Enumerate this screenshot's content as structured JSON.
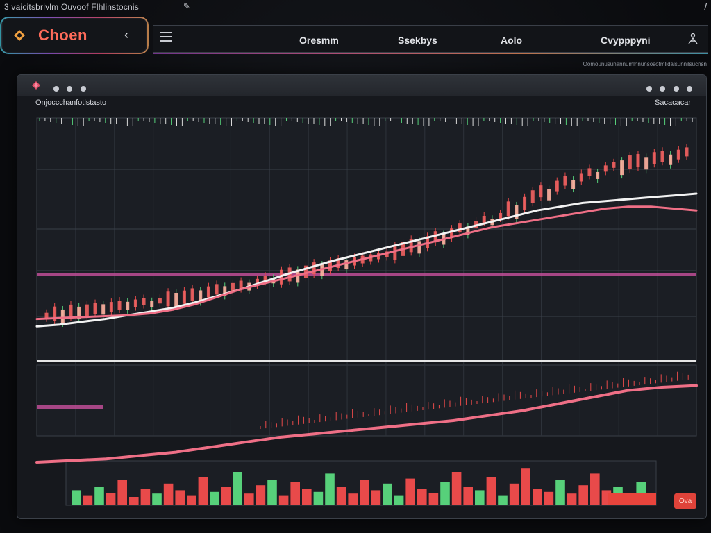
{
  "top_bar": {
    "caption": "3 vaicitsbrivlm Ouvoof Flhlinstocnis",
    "edit_glyph": "✎",
    "corner_glyph": "/"
  },
  "brand": {
    "name": "Choen",
    "back_glyph": "‹",
    "logo_icon": "diamond-logo-icon"
  },
  "nav": {
    "menu_icon": "hamburger-menu-icon",
    "items": [
      "Oresmm",
      "Ssekbys",
      "Aolo",
      "Cvypppyni"
    ],
    "user_icon": "user-icon"
  },
  "subtext": "Oomounusunannumlnnunsosofmlidalsunnilsucnsn",
  "window": {
    "header_left": "Onjoccchanfotlstasto",
    "header_right": "Sacacacar",
    "alert_button_label": "Ova"
  },
  "colors": {
    "up": "#e84a4a",
    "down": "#57d07a",
    "ma_pink": "#ef6f86",
    "ma_white": "#f2f2f2",
    "accent_magenta": "#c9509e",
    "grid": "#3a3f47"
  },
  "chart_data": [
    {
      "type": "line",
      "panel": "main-price",
      "title": "",
      "xlabel": "",
      "ylabel": "",
      "series": [
        {
          "kind": "candles",
          "values": [
            28,
            30,
            27,
            33,
            31,
            34,
            36,
            35,
            38,
            40,
            39,
            42,
            44,
            41,
            45,
            47,
            46,
            49,
            52,
            50,
            55,
            58,
            56,
            60,
            63,
            61,
            66,
            70,
            68,
            72,
            75,
            73,
            78,
            82,
            80,
            85,
            88,
            86,
            90,
            92,
            94,
            96,
            98,
            100,
            104,
            108,
            106,
            112,
            118,
            115,
            122,
            128,
            125,
            132,
            138,
            135,
            142,
            150,
            146,
            156,
            164,
            170,
            166,
            176,
            182,
            178,
            186,
            192,
            188,
            196,
            200,
            197,
            203,
            205,
            202,
            208,
            210,
            206,
            212,
            215
          ]
        },
        {
          "kind": "line",
          "values": [
            22,
            24,
            27,
            30,
            34,
            38,
            42,
            48,
            55,
            62,
            70,
            78,
            85,
            92,
            98,
            104,
            110,
            116,
            122,
            128,
            134,
            140,
            146,
            150,
            154,
            156,
            158,
            160,
            162,
            164
          ]
        },
        {
          "kind": "line",
          "values": [
            30,
            31,
            32,
            33,
            34,
            36,
            40,
            46,
            54,
            62,
            68,
            74,
            80,
            86,
            92,
            98,
            104,
            110,
            116,
            122,
            128,
            132,
            136,
            140,
            144,
            148,
            150,
            150,
            148,
            146
          ]
        }
      ],
      "ylim": [
        0,
        230
      ]
    },
    {
      "type": "line",
      "panel": "lower-trend",
      "series": [
        {
          "kind": "line",
          "values": [
            10,
            12,
            14,
            18,
            22,
            28,
            34,
            40,
            44,
            48,
            52,
            56,
            60,
            66,
            72,
            80,
            88,
            96,
            100,
            102
          ]
        }
      ],
      "ylim": [
        0,
        110
      ]
    },
    {
      "type": "bar",
      "panel": "volume",
      "values": [
        18,
        12,
        22,
        15,
        30,
        10,
        20,
        14,
        26,
        18,
        12,
        34,
        16,
        22,
        40,
        14,
        24,
        30,
        12,
        28,
        20,
        16,
        38,
        22,
        14,
        30,
        18,
        26,
        12,
        32,
        20,
        15,
        28,
        40,
        22,
        18,
        34,
        12,
        26,
        44,
        20,
        16,
        30,
        14,
        24,
        38,
        18,
        22,
        12,
        28
      ],
      "ylim": [
        0,
        50
      ]
    }
  ]
}
